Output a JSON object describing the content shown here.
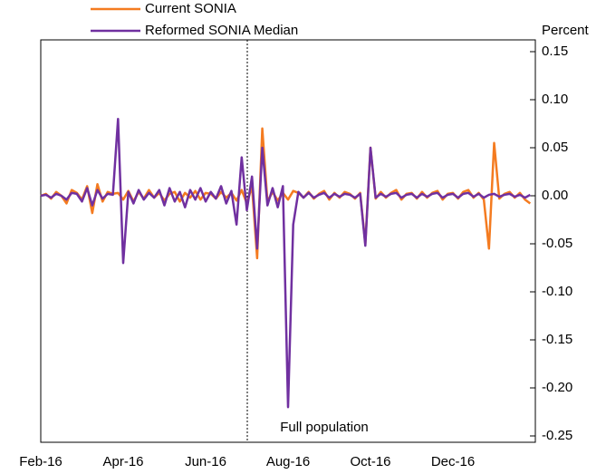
{
  "chart_data": {
    "type": "line",
    "y_axis_label": "Percent",
    "annotation": "Full population",
    "categories": [
      "Feb-16",
      null,
      null,
      null,
      null,
      null,
      null,
      null,
      null,
      null,
      null,
      null,
      null,
      null,
      null,
      null,
      "Apr-16",
      null,
      null,
      null,
      null,
      null,
      null,
      null,
      null,
      null,
      null,
      null,
      null,
      null,
      null,
      null,
      "Jun-16",
      null,
      null,
      null,
      null,
      null,
      null,
      null,
      null,
      null,
      null,
      null,
      null,
      null,
      null,
      null,
      "Aug-16",
      null,
      null,
      null,
      null,
      null,
      null,
      null,
      null,
      null,
      null,
      null,
      null,
      null,
      null,
      null,
      "Oct-16",
      null,
      null,
      null,
      null,
      null,
      null,
      null,
      null,
      null,
      null,
      null,
      null,
      null,
      null,
      null,
      "Dec-16",
      null,
      null,
      null,
      null,
      null,
      null,
      null,
      null,
      null,
      null,
      null,
      null,
      null,
      null,
      null
    ],
    "series": [
      {
        "name": "Current SONIA",
        "color": "#f47b20",
        "values": [
          0,
          0.002,
          -0.003,
          0.004,
          0,
          -0.008,
          0.006,
          0.003,
          -0.004,
          0.01,
          -0.018,
          0.012,
          -0.006,
          0.004,
          0.002,
          0.003,
          -0.004,
          0.005,
          -0.006,
          0.004,
          -0.003,
          0.006,
          -0.002,
          0.003,
          -0.005,
          0.002,
          0.004,
          -0.006,
          0.003,
          -0.002,
          0.005,
          -0.004,
          0.003,
          0.002,
          -0.003,
          0.004,
          -0.002,
          0.003,
          -0.005,
          0.006,
          -0.008,
          0.01,
          -0.065,
          0.07,
          -0.006,
          0.004,
          -0.005,
          0.003,
          -0.004,
          0.005,
          0.003,
          -0.002,
          0.004,
          -0.003,
          0.002,
          0.005,
          -0.004,
          0.003,
          -0.002,
          0.004,
          0.002,
          -0.003,
          0.003,
          -0.05,
          0.05,
          -0.003,
          0.004,
          -0.002,
          0.003,
          0.006,
          -0.004,
          0.002,
          0.003,
          -0.003,
          0.004,
          -0.002,
          0.003,
          0.005,
          -0.004,
          0.002,
          0.003,
          -0.003,
          0.004,
          0.006,
          -0.002,
          0.003,
          -0.004,
          -0.055,
          0.055,
          -0.003,
          0.002,
          0.004,
          -0.002,
          0.003,
          -0.004,
          -0.008
        ]
      },
      {
        "name": "Reformed SONIA Median",
        "color": "#7030a0",
        "values": [
          0,
          0.001,
          -0.002,
          0.002,
          0,
          -0.004,
          0.003,
          0.002,
          -0.006,
          0.008,
          -0.01,
          0.006,
          -0.003,
          0.002,
          0.001,
          0.08,
          -0.07,
          0.004,
          -0.008,
          0.006,
          -0.004,
          0.003,
          -0.002,
          0.006,
          -0.01,
          0.008,
          -0.006,
          0.004,
          -0.012,
          0.006,
          -0.004,
          0.008,
          -0.006,
          0.004,
          -0.003,
          0.01,
          -0.008,
          0.005,
          -0.03,
          0.04,
          -0.015,
          0.02,
          -0.055,
          0.05,
          -0.01,
          0.008,
          -0.012,
          0.01,
          -0.22,
          -0.03,
          0.004,
          -0.002,
          0.003,
          -0.002,
          0.001,
          0.003,
          -0.002,
          0.002,
          -0.001,
          0.002,
          0.001,
          -0.002,
          0.002,
          -0.052,
          0.05,
          -0.002,
          0.002,
          -0.001,
          0.002,
          0.003,
          -0.002,
          0.001,
          0.002,
          -0.002,
          0.002,
          -0.001,
          0.002,
          0.003,
          -0.002,
          0.001,
          0.002,
          -0.002,
          0.002,
          0.003,
          -0.001,
          0.002,
          -0.002,
          0.001,
          0.002,
          -0.001,
          0.001,
          0.002,
          -0.001,
          0.001,
          -0.002,
          0.001
        ]
      }
    ],
    "ylim": [
      -0.25,
      0.15
    ],
    "yticks": [
      0.15,
      {
        "value": 0.1,
        "label": "0.10"
      },
      0.05,
      {
        "value": 0,
        "label": "0.00"
      },
      -0.05,
      {
        "value": -0.1,
        "label": "-0.10"
      },
      -0.15,
      {
        "value": -0.2,
        "label": "-0.20"
      },
      -0.25
    ],
    "grid": false
  }
}
